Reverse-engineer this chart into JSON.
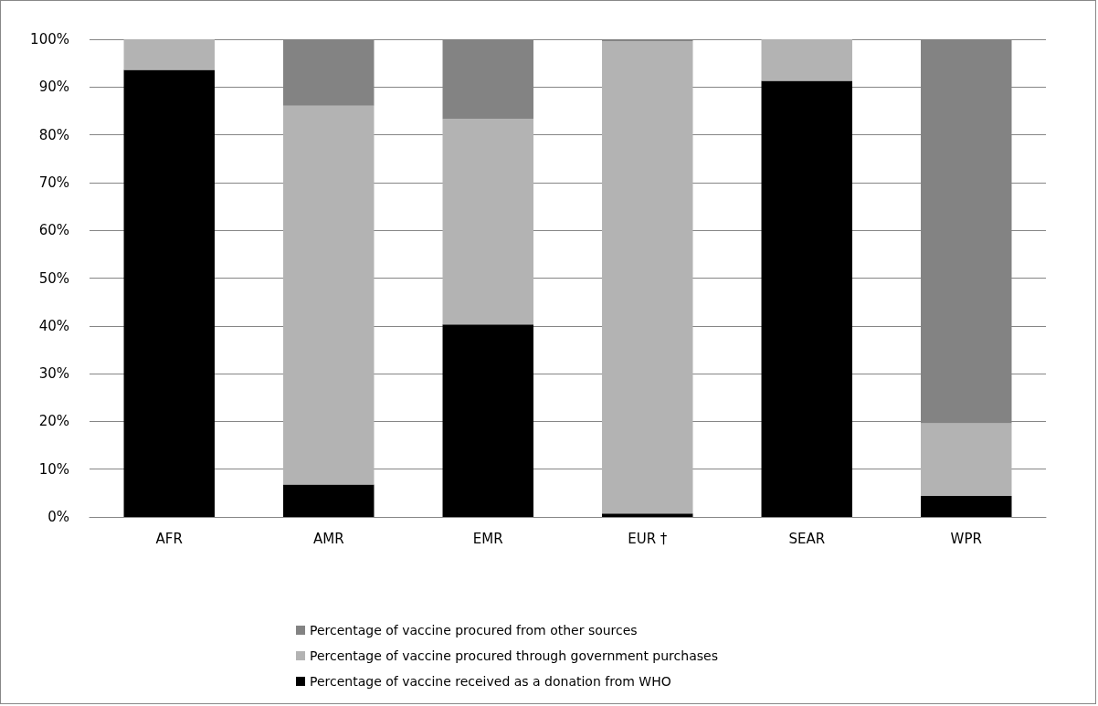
{
  "chart_data": {
    "type": "bar",
    "stacked": true,
    "categories": [
      "AFR",
      "AMR",
      "EMR",
      "EUR †",
      "SEAR",
      "WPR"
    ],
    "series": [
      {
        "name": "Percentage of vaccine received as a donation from WHO",
        "color": "#000000",
        "values": [
          93.6,
          6.8,
          40.3,
          0.7,
          91.3,
          4.4
        ]
      },
      {
        "name": "Percentage of vaccine procured through government purchases",
        "color": "#b3b3b3",
        "values": [
          6.4,
          79.3,
          43.0,
          98.9,
          8.7,
          15.2
        ]
      },
      {
        "name": "Percentage of vaccine procured from other sources",
        "color": "#838383",
        "values": [
          0,
          13.9,
          16.7,
          0.4,
          0,
          80.4
        ]
      }
    ],
    "ylim": [
      0,
      100
    ],
    "yticks": [
      {
        "value": 0,
        "label": "0%"
      },
      {
        "value": 10,
        "label": "10%"
      },
      {
        "value": 20,
        "label": "20%"
      },
      {
        "value": 30,
        "label": "30%"
      },
      {
        "value": 40,
        "label": "40%"
      },
      {
        "value": 50,
        "label": "50%"
      },
      {
        "value": 60,
        "label": "60%"
      },
      {
        "value": 70,
        "label": "70%"
      },
      {
        "value": 80,
        "label": "80%"
      },
      {
        "value": 90,
        "label": "90%"
      },
      {
        "value": 100,
        "label": "100%"
      }
    ],
    "grid": "y",
    "legend": "bottom"
  }
}
